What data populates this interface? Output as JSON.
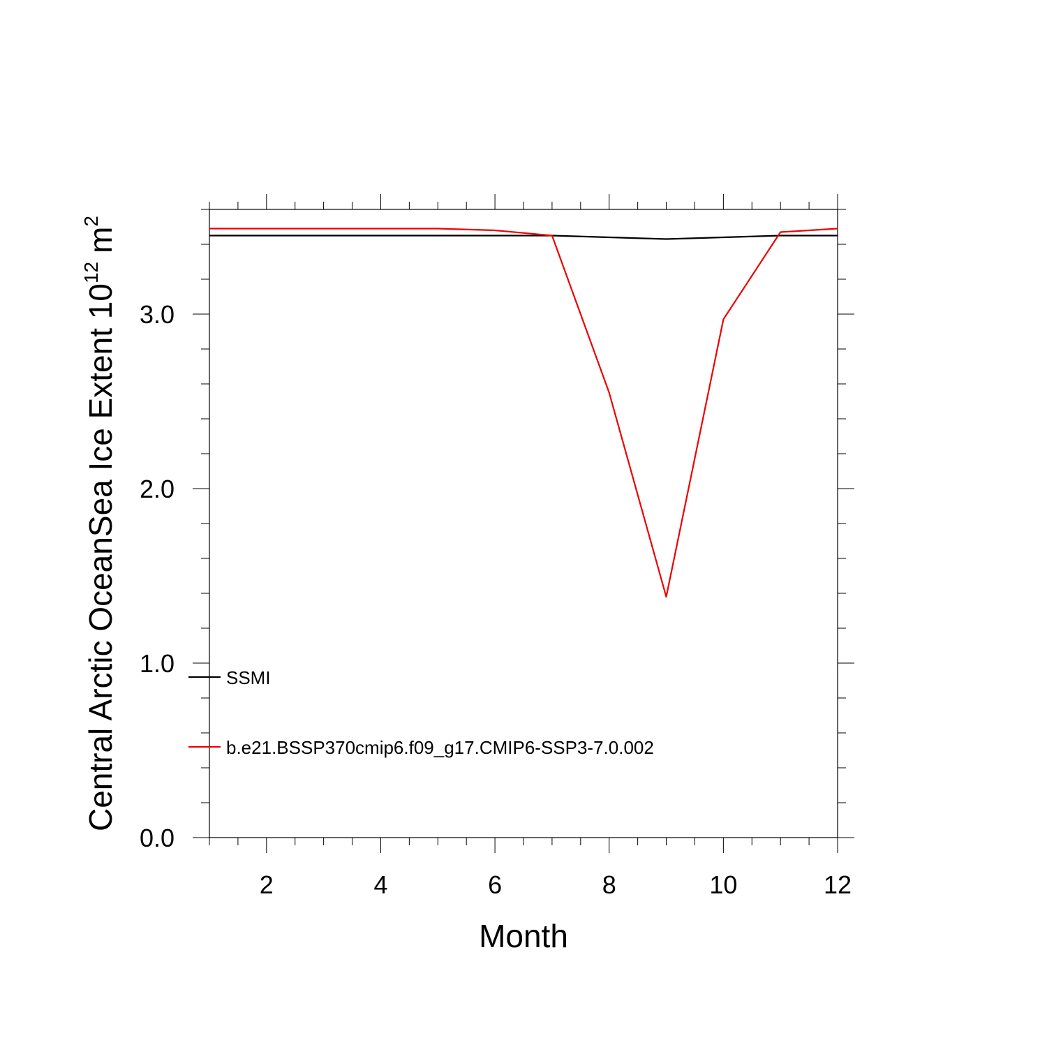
{
  "chart_data": {
    "type": "line",
    "title": "",
    "xlabel": "Month",
    "ylabel": "Central Arctic OceanSea Ice Extent 10",
    "ylabel_superscript": "12",
    "ylabel_unit": "m",
    "ylabel_unit_superscript": "2",
    "xlim": [
      1,
      12
    ],
    "ylim": [
      0,
      3.6
    ],
    "x_ticks": [
      2,
      4,
      6,
      8,
      10,
      12
    ],
    "x_tick_labels": [
      "2",
      "4",
      "6",
      "8",
      "10",
      "12"
    ],
    "y_ticks": [
      0,
      1,
      2,
      3
    ],
    "y_tick_labels": [
      "0.0",
      "1.0",
      "2.0",
      "3.0"
    ],
    "grid": false,
    "legend_position": "left-inside",
    "x": [
      1,
      2,
      3,
      4,
      5,
      6,
      7,
      8,
      9,
      10,
      11,
      12
    ],
    "series": [
      {
        "name": "SSMI",
        "color": "#000000",
        "values": [
          3.45,
          3.45,
          3.45,
          3.45,
          3.45,
          3.45,
          3.45,
          3.44,
          3.43,
          3.44,
          3.45,
          3.45
        ]
      },
      {
        "name": "b.e21.BSSP370cmip6.f09_g17.CMIP6-SSP3-7.0.002",
        "color": "#ee0000",
        "values": [
          3.49,
          3.49,
          3.49,
          3.49,
          3.49,
          3.48,
          3.45,
          2.55,
          1.38,
          2.97,
          3.47,
          3.49
        ]
      }
    ]
  }
}
